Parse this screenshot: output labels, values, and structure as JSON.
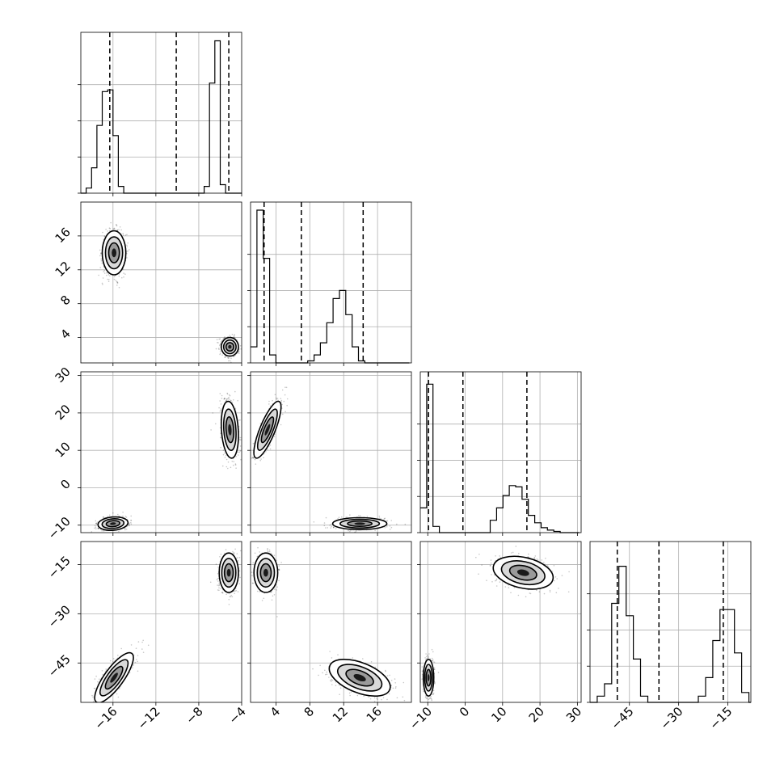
{
  "chart_data": {
    "type": "corner",
    "grid": true,
    "parameters": [
      {
        "range": [
          -19,
          -4
        ],
        "ticks": [
          -16,
          -12,
          -8,
          -4
        ],
        "tick_labels": [
          "−16",
          "−12",
          "−8",
          "−4"
        ],
        "quantiles": [
          -16.3,
          -10.1,
          -5.2
        ],
        "hist": {
          "start": -19,
          "step": 0.5,
          "values": [
            0,
            0.03,
            0.15,
            0.4,
            0.6,
            0.61,
            0.34,
            0.04,
            0,
            0,
            0,
            0,
            0,
            0,
            0,
            0,
            0,
            0,
            0,
            0,
            0,
            0,
            0,
            0.04,
            0.65,
            0.9,
            0.05,
            0,
            0,
            0
          ],
          "ylim": [
            0,
            0.95
          ]
        }
      },
      {
        "range": [
          1,
          20
        ],
        "ticks": [
          4,
          8,
          12,
          16
        ],
        "tick_labels": [
          "4",
          "8",
          "12",
          "16"
        ],
        "quantiles": [
          2.6,
          7.0,
          14.3
        ],
        "hist": {
          "start": 1,
          "step": 0.75,
          "values": [
            0.04,
            0.38,
            0.26,
            0.02,
            0,
            0,
            0,
            0,
            0,
            0.005,
            0.02,
            0.05,
            0.1,
            0.16,
            0.18,
            0.12,
            0.04,
            0.005,
            0,
            0,
            0,
            0,
            0,
            0,
            0
          ],
          "ylim": [
            0,
            0.4
          ]
        }
      },
      {
        "range": [
          -12,
          31
        ],
        "ticks": [
          -10,
          0,
          10,
          20,
          30
        ],
        "tick_labels": [
          "−10",
          "0",
          "10",
          "20",
          "30"
        ],
        "quantiles": [
          -9.8,
          -0.6,
          16.5
        ],
        "hist": {
          "start": -12,
          "step": 1.7,
          "values": [
            0.02,
            0.12,
            0.005,
            0,
            0,
            0,
            0,
            0,
            0,
            0,
            0,
            0.01,
            0.02,
            0.03,
            0.038,
            0.037,
            0.027,
            0.014,
            0.008,
            0.004,
            0.002,
            0.001,
            0,
            0,
            0
          ],
          "ylim": [
            0,
            0.13
          ]
        }
      },
      {
        "range": [
          -57,
          -8
        ],
        "ticks": [
          -45,
          -30,
          -15
        ],
        "tick_labels": [
          "−45",
          "−30",
          "−15"
        ],
        "quantiles": [
          -48.7,
          -36.0,
          -16.4
        ],
        "hist": {
          "start": -57,
          "step": 2.2,
          "values": [
            0,
            0.005,
            0.015,
            0.08,
            0.11,
            0.07,
            0.035,
            0.005,
            0,
            0,
            0,
            0,
            0,
            0,
            0,
            0.005,
            0.02,
            0.05,
            0.075,
            0.075,
            0.04,
            0.008,
            0
          ],
          "ylim": [
            0,
            0.13
          ]
        }
      }
    ],
    "joint": [
      {
        "row": 1,
        "col": 0,
        "modes": [
          {
            "cx": -15.9,
            "cy": 14.0,
            "sx": 0.55,
            "sy": 1.3,
            "rho": 0,
            "w": 1.0
          },
          {
            "cx": -5.1,
            "cy": 2.9,
            "sx": 0.4,
            "sy": 0.55,
            "rho": 0,
            "w": 1.0
          }
        ]
      },
      {
        "row": 2,
        "col": 0,
        "modes": [
          {
            "cx": -16.0,
            "cy": -9.6,
            "sx": 0.7,
            "sy": 0.9,
            "rho": 0.15,
            "w": 1.0
          },
          {
            "cx": -5.1,
            "cy": 15.5,
            "sx": 0.4,
            "sy": 3.8,
            "rho": -0.2,
            "w": 1.0
          }
        ]
      },
      {
        "row": 2,
        "col": 1,
        "modes": [
          {
            "cx": 3.0,
            "cy": 15.5,
            "sx": 0.8,
            "sy": 3.8,
            "rho": 0.8,
            "w": 1.0
          },
          {
            "cx": 13.9,
            "cy": -9.6,
            "sx": 1.6,
            "sy": 0.8,
            "rho": 0,
            "w": 1.0
          }
        ]
      },
      {
        "row": 3,
        "col": 0,
        "modes": [
          {
            "cx": -15.9,
            "cy": -49.5,
            "sx": 0.9,
            "sy": 3.8,
            "rho": 0.8,
            "w": 1.0
          },
          {
            "cx": -5.2,
            "cy": -17.5,
            "sx": 0.45,
            "sy": 3.0,
            "rho": 0,
            "w": 1.0
          }
        ]
      },
      {
        "row": 3,
        "col": 1,
        "modes": [
          {
            "cx": 2.8,
            "cy": -17.5,
            "sx": 0.7,
            "sy": 3.0,
            "rho": 0,
            "w": 1.0
          },
          {
            "cx": 13.9,
            "cy": -49.5,
            "sx": 1.8,
            "sy": 2.8,
            "rho": -0.5,
            "w": 1.0
          }
        ]
      },
      {
        "row": 3,
        "col": 2,
        "modes": [
          {
            "cx": -9.8,
            "cy": -49.5,
            "sx": 0.7,
            "sy": 2.8,
            "rho": 0,
            "w": 1.0
          },
          {
            "cx": 15.5,
            "cy": -17.5,
            "sx": 4.0,
            "sy": 2.5,
            "rho": -0.3,
            "w": 1.0
          }
        ]
      }
    ]
  }
}
